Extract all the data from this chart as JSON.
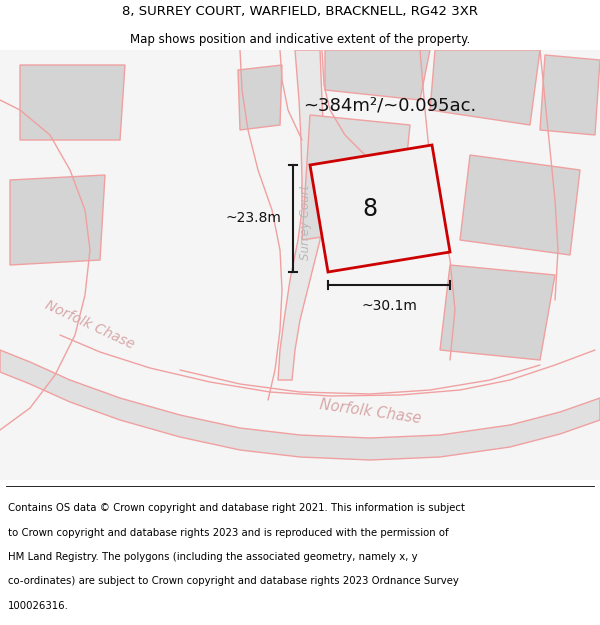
{
  "title_line1": "8, SURREY COURT, WARFIELD, BRACKNELL, RG42 3XR",
  "title_line2": "Map shows position and indicative extent of the property.",
  "area_label": "~384m²/~0.095ac.",
  "number_label": "8",
  "width_label": "~30.1m",
  "height_label": "~23.8m",
  "street_surrey": "Surrey Court",
  "street_norfolk1": "Norfolk Chase",
  "street_norfolk2": "Norfolk Chase",
  "footer_lines": [
    "Contains OS data © Crown copyright and database right 2021. This information is subject",
    "to Crown copyright and database rights 2023 and is reproduced with the permission of",
    "HM Land Registry. The polygons (including the associated geometry, namely x, y",
    "co-ordinates) are subject to Crown copyright and database rights 2023 Ordnance Survey",
    "100026316."
  ],
  "map_bg": "#f5f5f5",
  "white": "#ffffff",
  "block_fill": "#d4d4d4",
  "road_fill": "#e0e0e0",
  "road_stroke": "#f0a0a0",
  "highlight_stroke": "#cc0000",
  "highlight_fill": "#f5f5f5",
  "dim_color": "#1a1a1a",
  "text_gray": "#aaaaaa",
  "text_pink": "#d4a0a0"
}
